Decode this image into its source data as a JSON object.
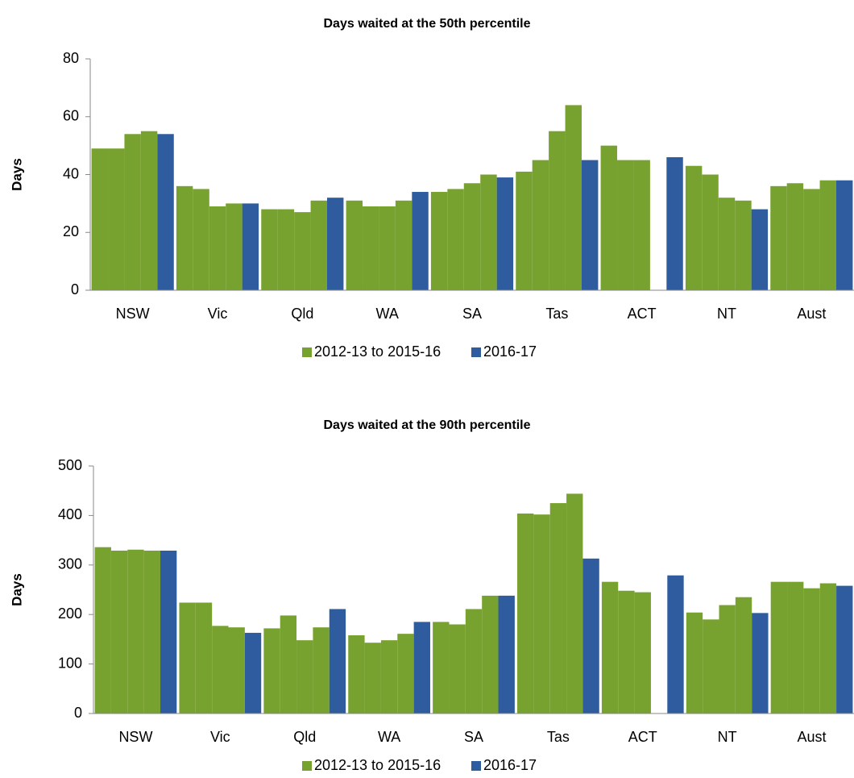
{
  "chart_data": [
    {
      "type": "bar",
      "title": "Days waited at the 50th percentile",
      "y_label": "Days",
      "categories": [
        "NSW",
        "Vic",
        "Qld",
        "WA",
        "SA",
        "Tas",
        "ACT",
        "NT",
        "Aust"
      ],
      "series": [
        {
          "name": "2012-13 to 2015-16",
          "color": "#78a22f",
          "values": [
            [
              49,
              49,
              54,
              55
            ],
            [
              36,
              35,
              29,
              30
            ],
            [
              28,
              28,
              27,
              31
            ],
            [
              31,
              29,
              29,
              31
            ],
            [
              34,
              35,
              37,
              40
            ],
            [
              41,
              45,
              55,
              64
            ],
            [
              50,
              45,
              45,
              null
            ],
            [
              43,
              40,
              32,
              31
            ],
            [
              36,
              37,
              35,
              38
            ]
          ]
        },
        {
          "name": "2016-17",
          "color": "#2e5c9e",
          "values": [
            54,
            30,
            32,
            34,
            39,
            45,
            46,
            28,
            38
          ]
        }
      ],
      "ylim": [
        0,
        80
      ],
      "yticks": [
        0,
        20,
        40,
        60,
        80
      ],
      "grid": false,
      "legend": "bottom"
    },
    {
      "type": "bar",
      "title": "Days waited at the 90th percentile",
      "y_label": "Days",
      "categories": [
        "NSW",
        "Vic",
        "Qld",
        "WA",
        "SA",
        "Tas",
        "ACT",
        "NT",
        "Aust"
      ],
      "series": [
        {
          "name": "2012-13 to 2015-16",
          "color": "#78a22f",
          "values": [
            [
              336,
              329,
              331,
              329
            ],
            [
              224,
              224,
              177,
              174
            ],
            [
              172,
              198,
              148,
              174
            ],
            [
              158,
              143,
              148,
              161
            ],
            [
              185,
              180,
              211,
              238
            ],
            [
              404,
              402,
              425,
              444
            ],
            [
              266,
              248,
              245,
              null
            ],
            [
              204,
              190,
              219,
              235
            ],
            [
              266,
              266,
              253,
              263
            ]
          ]
        },
        {
          "name": "2016-17",
          "color": "#2e5c9e",
          "values": [
            329,
            163,
            211,
            185,
            238,
            313,
            279,
            203,
            258
          ]
        }
      ],
      "ylim": [
        0,
        500
      ],
      "yticks": [
        0,
        100,
        200,
        300,
        400,
        500
      ],
      "grid": false,
      "legend": "bottom"
    }
  ]
}
